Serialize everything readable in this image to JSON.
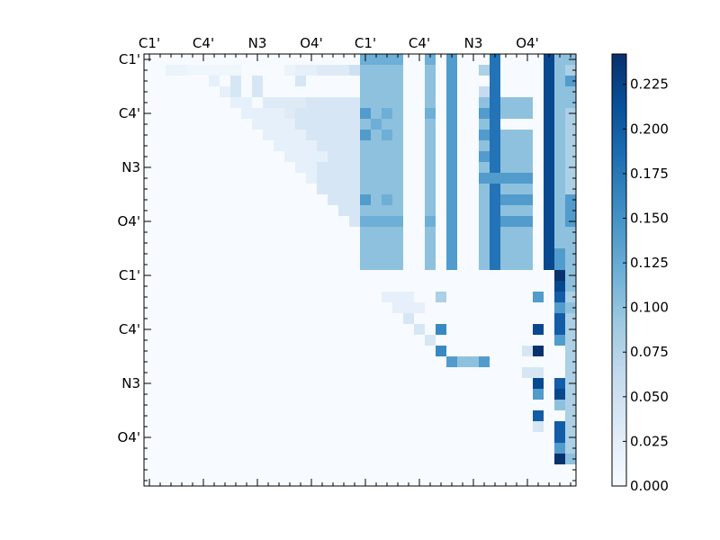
{
  "chart_data": {
    "type": "heatmap",
    "title": "",
    "xlabel": "",
    "ylabel": "",
    "n": 40,
    "x_tick_labels": [
      "C1'",
      "C4'",
      "N3",
      "O4'",
      "C1'",
      "C4'",
      "N3",
      "O4'"
    ],
    "y_tick_labels": [
      "C1'",
      "C4'",
      "N3",
      "O4'",
      "C1'",
      "C4'",
      "N3",
      "O4'"
    ],
    "major_tick_indices": [
      0,
      5,
      10,
      15,
      20,
      25,
      30,
      35
    ],
    "colormap": "Blues",
    "colors": {
      "low": "#f7fbff",
      "high": "#08306b"
    },
    "colorbar": {
      "min": 0.0,
      "max": 0.242,
      "ticks": [
        "0.000",
        "0.025",
        "0.050",
        "0.075",
        "0.100",
        "0.125",
        "0.150",
        "0.175",
        "0.200",
        "0.225"
      ]
    },
    "matrix_rows": [
      "0,0,0,0,0,0,0,0,0,0,0,0,0,0,0,0,0,0,0,0,120,120,120,120,0,0,120,0,140,0,0,0,180,0,0,0,0,220,100,100",
      "0,0,15,15,10,10,10,10,10,0,0,0,0,15,20,20,30,30,30,50,100,100,100,100,0,0,100,0,140,0,0,80,180,0,0,0,0,220,100,80",
      "0,0,0,0,0,0,20,0,40,0,40,0,0,0,40,0,0,0,0,0,100,100,100,100,0,0,100,0,140,0,0,0,180,0,0,0,0,220,100,140",
      "0,0,0,0,0,0,0,20,40,0,40,0,0,0,0,0,0,0,0,0,100,100,100,100,0,0,100,0,140,0,0,60,180,0,0,0,0,220,100,100",
      "0,0,0,0,0,0,0,0,20,20,0,30,30,30,30,40,40,40,40,40,100,100,100,100,0,0,100,0,140,0,0,100,180,100,100,100,0,220,100,100",
      "0,0,0,0,0,0,0,0,0,20,20,20,20,30,40,40,40,40,40,40,140,100,120,100,0,0,120,0,140,0,0,140,180,100,100,100,0,220,100,80",
      "0,0,0,0,0,0,0,0,0,0,20,20,20,20,40,40,40,40,40,40,100,120,100,100,0,0,100,0,140,0,0,100,180,0,0,0,0,220,100,80",
      "0,0,0,0,0,0,0,0,0,0,0,20,20,20,20,40,40,40,40,40,140,100,120,100,0,0,100,0,140,0,0,140,180,100,100,100,0,220,100,80",
      "0,0,0,0,0,0,0,0,0,0,0,0,20,20,20,20,40,40,40,40,100,100,100,100,0,0,100,0,140,0,0,100,180,100,100,100,0,220,100,80",
      "0,0,0,0,0,0,0,0,0,0,0,0,0,20,20,20,20,40,40,40,100,100,100,100,0,0,100,0,140,0,0,140,180,100,100,100,0,220,100,80",
      "0,0,0,0,0,0,0,0,0,0,0,0,0,0,20,20,40,40,40,40,100,100,100,100,0,0,100,0,140,0,0,100,180,100,100,100,0,220,100,80",
      "0,0,0,0,0,0,0,0,0,0,0,0,0,0,0,20,40,40,40,40,100,100,100,100,0,0,100,0,140,0,0,140,140,140,140,140,0,220,100,80",
      "0,0,0,0,0,0,0,0,0,0,0,0,0,0,0,0,40,40,40,40,100,100,100,100,0,0,100,0,140,0,0,100,180,100,100,100,0,220,100,80",
      "0,0,0,0,0,0,0,0,0,0,0,0,0,0,0,0,0,40,40,40,140,100,120,100,0,0,100,0,140,0,0,100,180,140,140,140,0,220,100,140",
      "0,0,0,0,0,0,0,0,0,0,0,0,0,0,0,0,0,0,40,40,100,100,100,100,0,0,100,0,140,0,0,100,180,100,100,100,0,220,100,140",
      "0,0,0,0,0,0,0,0,0,0,0,0,0,0,0,0,0,0,0,40,120,120,120,120,0,0,120,0,140,0,0,100,180,140,140,140,0,220,100,140",
      "0,0,0,0,0,0,0,0,0,0,0,0,0,0,0,0,0,0,0,0,100,100,100,100,0,0,100,0,140,0,0,100,180,100,100,100,0,220,100,100",
      "0,0,0,0,0,0,0,0,0,0,0,0,0,0,0,0,0,0,0,0,100,100,100,100,0,0,100,0,140,0,0,100,180,100,100,100,0,220,100,100",
      "0,0,0,0,0,0,0,0,0,0,0,0,0,0,0,0,0,0,0,0,100,100,100,100,0,0,100,0,140,0,0,100,180,100,100,100,0,220,140,100",
      "0,0,0,0,0,0,0,0,0,0,0,0,0,0,0,0,0,0,0,0,100,100,100,100,0,0,100,0,140,0,0,100,180,100,100,100,0,220,140,100",
      "0,0,0,0,0,0,0,0,0,0,0,0,0,0,0,0,0,0,0,0,0,0,0,0,0,0,0,0,0,0,0,0,0,0,0,0,0,0,240,100",
      "0,0,0,0,0,0,0,0,0,0,0,0,0,0,0,0,0,0,0,0,0,0,0,0,0,0,0,0,0,0,0,0,0,0,0,0,0,0,220,100",
      "0,0,0,0,0,0,0,0,0,0,0,0,0,0,0,0,0,0,0,0,0,0,20,20,20,0,0,80,0,0,0,0,0,0,0,0,140,0,200,80",
      "0,0,0,0,0,0,0,0,0,0,0,0,0,0,0,0,0,0,0,0,0,0,0,20,20,20,0,0,0,0,0,0,0,0,0,0,0,0,140,100",
      "0,0,0,0,0,0,0,0,0,0,0,0,0,0,0,0,0,0,0,0,0,0,0,0,40,0,0,0,0,0,0,0,0,0,0,0,0,0,200,80",
      "0,0,0,0,0,0,0,0,0,0,0,0,0,0,0,0,0,0,0,0,0,0,0,0,0,40,0,160,0,0,0,0,0,0,0,0,220,0,200,80",
      "0,0,0,0,0,0,0,0,0,0,0,0,0,0,0,0,0,0,0,0,0,0,0,0,0,0,40,0,0,0,0,0,0,0,0,0,0,0,140,80",
      "0,0,0,0,0,0,0,0,0,0,0,0,0,0,0,0,0,0,0,0,0,0,0,0,0,0,0,160,0,0,0,0,0,0,0,40,240,0,0,80",
      "0,0,0,0,0,0,0,0,0,0,0,0,0,0,0,0,0,0,0,0,0,0,0,0,0,0,0,0,140,100,100,140,0,0,0,0,0,0,0,80",
      "0,0,0,0,0,0,0,0,0,0,0,0,0,0,0,0,0,0,0,0,0,0,0,0,0,0,0,0,0,0,0,0,0,0,0,40,40,0,0,80",
      "0,0,0,0,0,0,0,0,0,0,0,0,0,0,0,0,0,0,0,0,0,0,0,0,0,0,0,0,0,0,0,0,0,0,0,0,220,0,200,80",
      "0,0,0,0,0,0,0,0,0,0,0,0,0,0,0,0,0,0,0,0,0,0,0,0,0,0,0,0,0,0,0,0,0,0,0,0,140,0,220,80",
      "0,0,0,0,0,0,0,0,0,0,0,0,0,0,0,0,0,0,0,0,0,0,0,0,0,0,0,0,0,0,0,0,0,0,0,0,0,0,100,80",
      "0,0,0,0,0,0,0,0,0,0,0,0,0,0,0,0,0,0,0,0,0,0,0,0,0,0,0,0,0,0,0,0,0,0,0,0,200,0,0,80",
      "0,0,0,0,0,0,0,0,0,0,0,0,0,0,0,0,0,0,0,0,0,0,0,0,0,0,0,0,0,0,0,0,0,0,0,0,40,0,200,80",
      "0,0,0,0,0,0,0,0,0,0,0,0,0,0,0,0,0,0,0,0,0,0,0,0,0,0,0,0,0,0,0,0,0,0,0,0,0,0,200,80",
      "0,0,0,0,0,0,0,0,0,0,0,0,0,0,0,0,0,0,0,0,0,0,0,0,0,0,0,0,0,0,0,0,0,0,0,0,0,0,140,80",
      "0,0,0,0,0,0,0,0,0,0,0,0,0,0,0,0,0,0,0,0,0,0,0,0,0,0,0,0,0,0,0,0,0,0,0,0,0,0,240,100",
      "0,0,0,0,0,0,0,0,0,0,0,0,0,0,0,0,0,0,0,0,0,0,0,0,0,0,0,0,0,0,0,0,0,0,0,0,0,0,0,0",
      "0,0,0,0,0,0,0,0,0,0,0,0,0,0,0,0,0,0,0,0,0,0,0,0,0,0,0,0,0,0,0,0,0,0,0,0,0,0,0,0"
    ],
    "value_scale": "matrix_rows entries are values x 1000"
  }
}
